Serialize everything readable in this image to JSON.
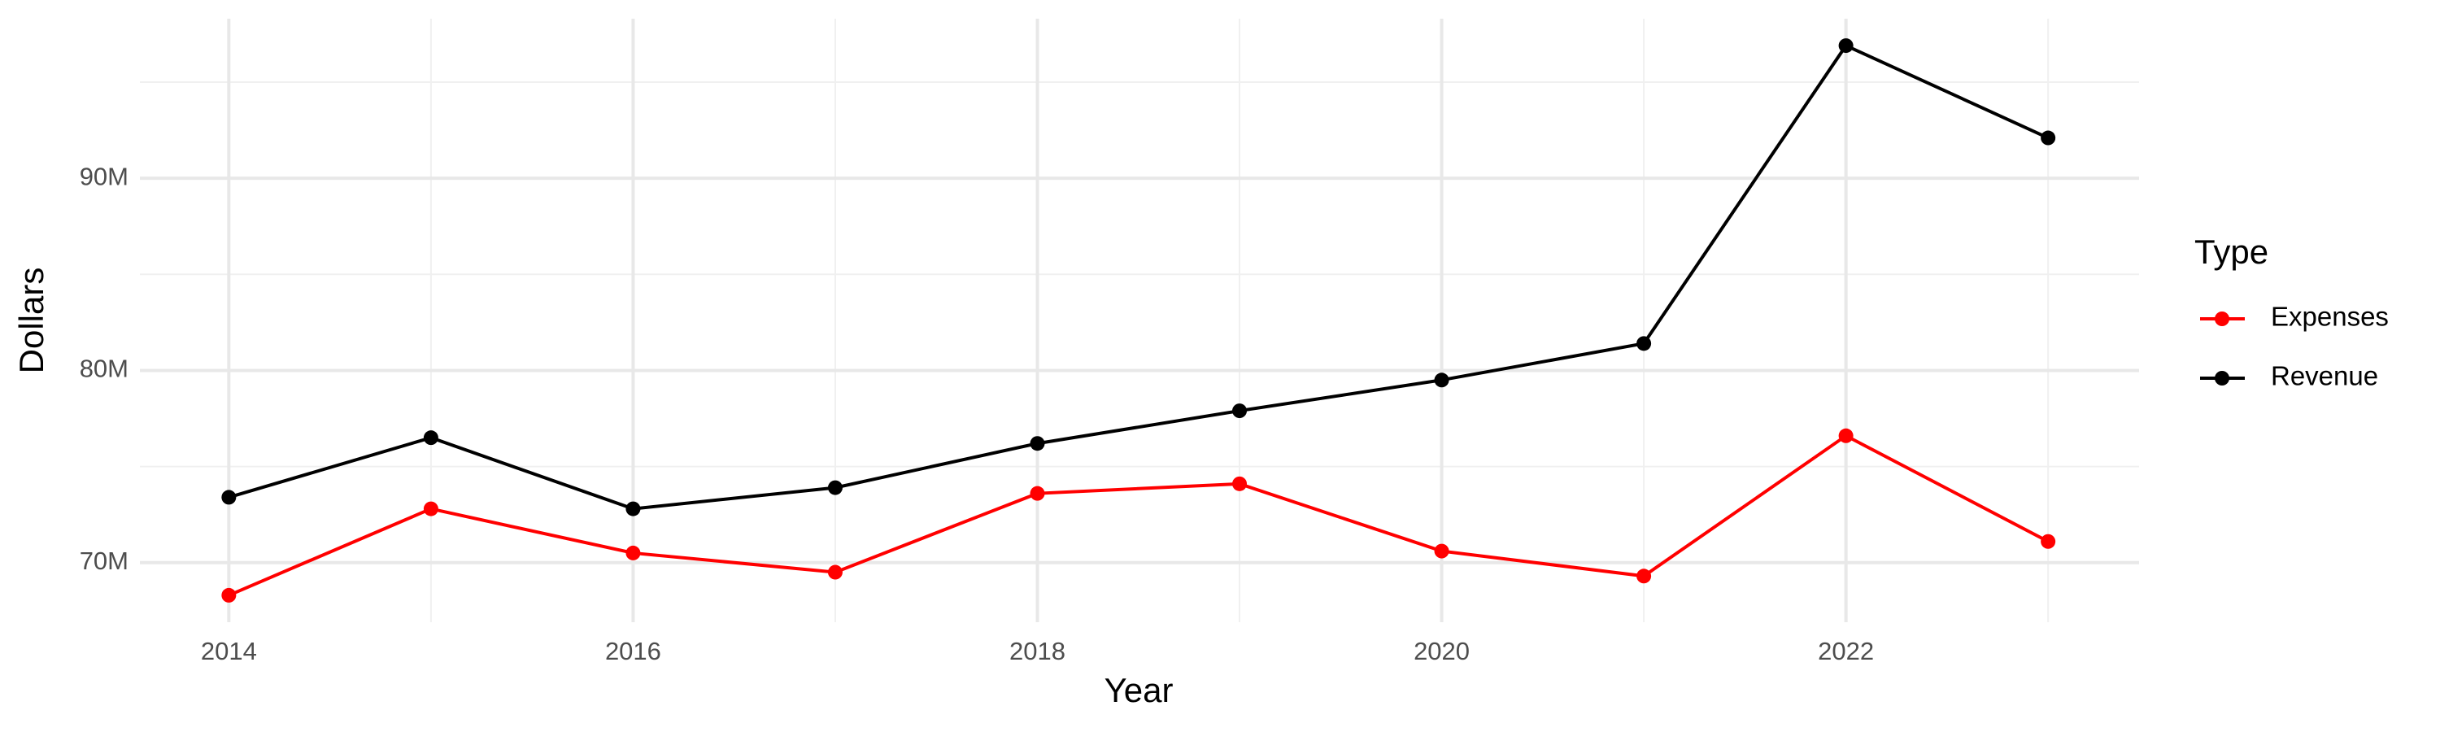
{
  "chart_data": {
    "type": "line",
    "x_label": "Year",
    "y_label": "Dollars",
    "x": [
      2014,
      2015,
      2016,
      2017,
      2018,
      2019,
      2020,
      2021,
      2022,
      2023
    ],
    "series": [
      {
        "name": "Expenses",
        "color": "#ff0000",
        "values": [
          68300000,
          72800000,
          70500000,
          69500000,
          73600000,
          74100000,
          70600000,
          69300000,
          76600000,
          71100000
        ]
      },
      {
        "name": "Revenue",
        "color": "#000000",
        "values": [
          73400000,
          76500000,
          72800000,
          73900000,
          76200000,
          77900000,
          79500000,
          81400000,
          96900000,
          92100000
        ]
      }
    ],
    "xlim": [
      2013.56,
      2023.45
    ],
    "ylim": [
      66900000,
      98300000
    ],
    "xticks": [
      2014,
      2016,
      2018,
      2020,
      2022
    ],
    "x_minor_ticks": [
      2015,
      2017,
      2019,
      2021,
      2023
    ],
    "yticks": [
      {
        "value": 70000000,
        "label": "70M"
      },
      {
        "value": 80000000,
        "label": "80M"
      },
      {
        "value": 90000000,
        "label": "90M"
      }
    ],
    "y_minor_ticks": [
      75000000,
      85000000,
      95000000
    ],
    "grid": true,
    "legend_title": "Type",
    "legend_position": "right"
  }
}
